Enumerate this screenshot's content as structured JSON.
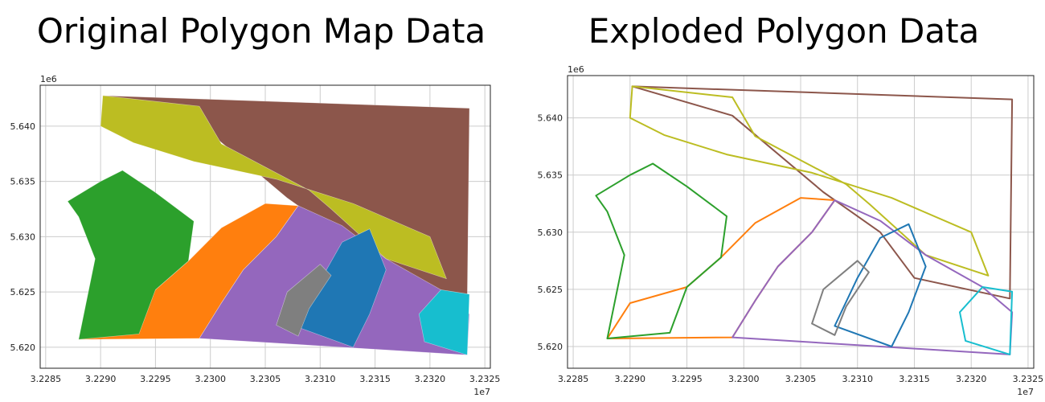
{
  "chart_data": [
    {
      "type": "map",
      "title": "Original Polygon Map Data",
      "render": "filled",
      "xlim": [
        3.22845,
        3.23255
      ],
      "ylim": [
        5.6181,
        5.6437
      ],
      "xticks": [
        3.2285,
        3.229,
        3.2295,
        3.23,
        3.2305,
        3.231,
        3.2315,
        3.232,
        3.2325
      ],
      "xtick_labels": [
        "3.2285",
        "3.2290",
        "3.2295",
        "3.2300",
        "3.2305",
        "3.2310",
        "3.2315",
        "3.2320",
        "3.2325"
      ],
      "yticks": [
        5.62,
        5.625,
        5.63,
        5.635,
        5.64
      ],
      "ytick_labels": [
        "5.620",
        "5.625",
        "5.630",
        "5.635",
        "5.640"
      ],
      "x_offset_label": "1e7",
      "y_offset_label": "1e6",
      "grid": true,
      "series": [
        {
          "color": "#8c564b",
          "polygon": [
            [
              3.22902,
              5.64276
            ],
            [
              3.23236,
              5.64162
            ],
            [
              3.23234,
              5.6242
            ],
            [
              3.2315,
              5.626
            ],
            [
              3.2312,
              5.63
            ],
            [
              3.2307,
              5.6335
            ],
            [
              3.2299,
              5.6402
            ]
          ]
        },
        {
          "color": "#bcbd22",
          "polygon": [
            [
              3.22902,
              5.64276
            ],
            [
              3.2299,
              5.6418
            ],
            [
              3.2301,
              5.6384
            ],
            [
              3.2309,
              5.6342
            ],
            [
              3.2311,
              5.6325
            ],
            [
              3.2316,
              5.628
            ],
            [
              3.23215,
              5.6262
            ],
            [
              3.232,
              5.63
            ],
            [
              3.2313,
              5.633
            ],
            [
              3.2306,
              5.6352
            ],
            [
              3.22985,
              5.6368
            ],
            [
              3.2293,
              5.6385
            ],
            [
              3.229,
              5.64
            ]
          ]
        },
        {
          "color": "#ff7f0e",
          "polygon": [
            [
              3.2288,
              5.6207
            ],
            [
              3.229,
              5.6238
            ],
            [
              3.2295,
              5.6252
            ],
            [
              3.2298,
              5.6278
            ],
            [
              3.2301,
              5.6308
            ],
            [
              3.2305,
              5.633
            ],
            [
              3.2308,
              5.6328
            ],
            [
              3.2306,
              5.63
            ],
            [
              3.2303,
              5.627
            ],
            [
              3.2301,
              5.624
            ],
            [
              3.2299,
              5.6208
            ]
          ]
        },
        {
          "color": "#9467bd",
          "polygon": [
            [
              3.2299,
              5.6208
            ],
            [
              3.2301,
              5.624
            ],
            [
              3.2303,
              5.627
            ],
            [
              3.2306,
              5.63
            ],
            [
              3.2308,
              5.6328
            ],
            [
              3.2312,
              5.631
            ],
            [
              3.2316,
              5.628
            ],
            [
              3.2321,
              5.6252
            ],
            [
              3.23236,
              5.623
            ],
            [
              3.23234,
              5.6193
            ]
          ]
        },
        {
          "color": "#2ca02c",
          "polygon": [
            [
              3.2288,
              5.6207
            ],
            [
              3.22895,
              5.628
            ],
            [
              3.2288,
              5.6318
            ],
            [
              3.2287,
              5.6332
            ],
            [
              3.229,
              5.635
            ],
            [
              3.2292,
              5.636
            ],
            [
              3.2295,
              5.634
            ],
            [
              3.22985,
              5.6314
            ],
            [
              3.2298,
              5.6278
            ],
            [
              3.2295,
              5.6252
            ],
            [
              3.22935,
              5.6212
            ]
          ]
        },
        {
          "color": "#1f77b4",
          "polygon": [
            [
              3.2308,
              5.6218
            ],
            [
              3.231,
              5.626
            ],
            [
              3.2312,
              5.6295
            ],
            [
              3.23145,
              5.6307
            ],
            [
              3.2316,
              5.627
            ],
            [
              3.23145,
              5.623
            ],
            [
              3.2313,
              5.62
            ]
          ]
        },
        {
          "color": "#7f7f7f",
          "polygon": [
            [
              3.2306,
              5.622
            ],
            [
              3.2307,
              5.625
            ],
            [
              3.231,
              5.6275
            ],
            [
              3.2311,
              5.6265
            ],
            [
              3.2309,
              5.6235
            ],
            [
              3.2308,
              5.621
            ]
          ]
        },
        {
          "color": "#17becf",
          "polygon": [
            [
              3.2321,
              5.6252
            ],
            [
              3.23236,
              5.6248
            ],
            [
              3.23234,
              5.6193
            ],
            [
              3.23195,
              5.6205
            ],
            [
              3.2319,
              5.623
            ]
          ]
        }
      ]
    },
    {
      "type": "map",
      "title": "Exploded Polygon Data",
      "render": "outline",
      "xlim": [
        3.22845,
        3.23255
      ],
      "ylim": [
        5.6181,
        5.6437
      ],
      "xticks": [
        3.2285,
        3.229,
        3.2295,
        3.23,
        3.2305,
        3.231,
        3.2315,
        3.232,
        3.2325
      ],
      "xtick_labels": [
        "3.2285",
        "3.2290",
        "3.2295",
        "3.2300",
        "3.2305",
        "3.2310",
        "3.2315",
        "3.2320",
        "3.2325"
      ],
      "yticks": [
        5.62,
        5.625,
        5.63,
        5.635,
        5.64
      ],
      "ytick_labels": [
        "5.620",
        "5.625",
        "5.630",
        "5.635",
        "5.640"
      ],
      "x_offset_label": "1e7",
      "y_offset_label": "1e6",
      "grid": true,
      "series": [
        {
          "color": "#8c564b",
          "polygon": [
            [
              3.22902,
              5.64276
            ],
            [
              3.23236,
              5.64162
            ],
            [
              3.23234,
              5.6242
            ],
            [
              3.2315,
              5.626
            ],
            [
              3.2312,
              5.63
            ],
            [
              3.2307,
              5.6335
            ],
            [
              3.2299,
              5.6402
            ]
          ]
        },
        {
          "color": "#bcbd22",
          "polygon": [
            [
              3.22902,
              5.64276
            ],
            [
              3.2299,
              5.6418
            ],
            [
              3.2301,
              5.6384
            ],
            [
              3.2309,
              5.6342
            ],
            [
              3.2311,
              5.6325
            ],
            [
              3.2316,
              5.628
            ],
            [
              3.23215,
              5.6262
            ],
            [
              3.232,
              5.63
            ],
            [
              3.2313,
              5.633
            ],
            [
              3.2306,
              5.6352
            ],
            [
              3.22985,
              5.6368
            ],
            [
              3.2293,
              5.6385
            ],
            [
              3.229,
              5.64
            ]
          ]
        },
        {
          "color": "#ff7f0e",
          "polygon": [
            [
              3.2288,
              5.6207
            ],
            [
              3.229,
              5.6238
            ],
            [
              3.2295,
              5.6252
            ],
            [
              3.2298,
              5.6278
            ],
            [
              3.2301,
              5.6308
            ],
            [
              3.2305,
              5.633
            ],
            [
              3.2308,
              5.6328
            ],
            [
              3.2306,
              5.63
            ],
            [
              3.2303,
              5.627
            ],
            [
              3.2301,
              5.624
            ],
            [
              3.2299,
              5.6208
            ]
          ]
        },
        {
          "color": "#9467bd",
          "polygon": [
            [
              3.2299,
              5.6208
            ],
            [
              3.2301,
              5.624
            ],
            [
              3.2303,
              5.627
            ],
            [
              3.2306,
              5.63
            ],
            [
              3.2308,
              5.6328
            ],
            [
              3.2312,
              5.631
            ],
            [
              3.2316,
              5.628
            ],
            [
              3.2321,
              5.6252
            ],
            [
              3.23236,
              5.623
            ],
            [
              3.23234,
              5.6193
            ]
          ]
        },
        {
          "color": "#2ca02c",
          "polygon": [
            [
              3.2288,
              5.6207
            ],
            [
              3.22895,
              5.628
            ],
            [
              3.2288,
              5.6318
            ],
            [
              3.2287,
              5.6332
            ],
            [
              3.229,
              5.635
            ],
            [
              3.2292,
              5.636
            ],
            [
              3.2295,
              5.634
            ],
            [
              3.22985,
              5.6314
            ],
            [
              3.2298,
              5.6278
            ],
            [
              3.2295,
              5.6252
            ],
            [
              3.22935,
              5.6212
            ]
          ]
        },
        {
          "color": "#1f77b4",
          "polygon": [
            [
              3.2308,
              5.6218
            ],
            [
              3.231,
              5.626
            ],
            [
              3.2312,
              5.6295
            ],
            [
              3.23145,
              5.6307
            ],
            [
              3.2316,
              5.627
            ],
            [
              3.23145,
              5.623
            ],
            [
              3.2313,
              5.62
            ]
          ]
        },
        {
          "color": "#7f7f7f",
          "polygon": [
            [
              3.2306,
              5.622
            ],
            [
              3.2307,
              5.625
            ],
            [
              3.231,
              5.6275
            ],
            [
              3.2311,
              5.6265
            ],
            [
              3.2309,
              5.6235
            ],
            [
              3.2308,
              5.621
            ]
          ]
        },
        {
          "color": "#17becf",
          "polygon": [
            [
              3.2321,
              5.6252
            ],
            [
              3.23236,
              5.6248
            ],
            [
              3.23234,
              5.6193
            ],
            [
              3.23195,
              5.6205
            ],
            [
              3.2319,
              5.623
            ]
          ]
        }
      ]
    }
  ]
}
